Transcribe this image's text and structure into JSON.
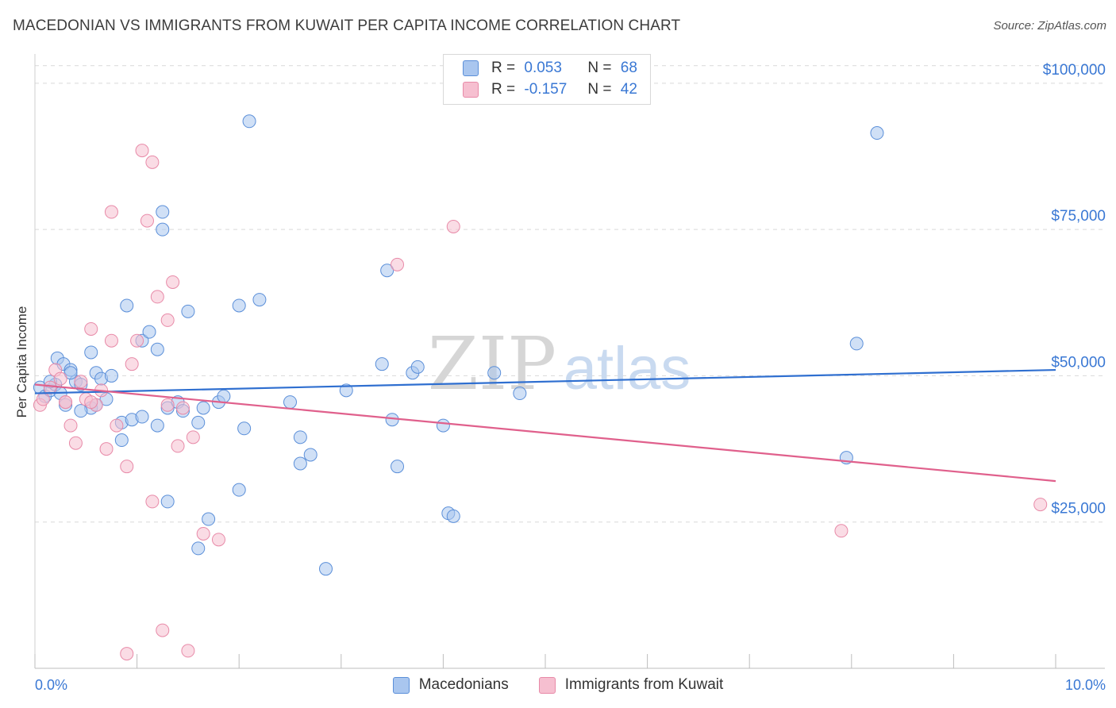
{
  "header": {
    "title": "MACEDONIAN VS IMMIGRANTS FROM KUWAIT PER CAPITA INCOME CORRELATION CHART",
    "source": "Source: ZipAtlas.com"
  },
  "legend": {
    "rows": [
      {
        "r_label": "R =",
        "r_value": "0.053",
        "n_label": "N =",
        "n_value": "68"
      },
      {
        "r_label": "R =",
        "r_value": "-0.157",
        "n_label": "N =",
        "n_value": "42"
      }
    ]
  },
  "bottom_legend": {
    "series_1": "Macedonians",
    "series_2": "Immigrants from Kuwait"
  },
  "colors": {
    "blue_fill": "#a9c6ef",
    "blue_stroke": "#5b8fd9",
    "blue_line": "#2f6fd0",
    "pink_fill": "#f6bfd0",
    "pink_stroke": "#e88aa8",
    "pink_line": "#e0608c",
    "tick_text": "#3a78d4",
    "grid": "#d9d9d9"
  },
  "chart_data": {
    "type": "scatter",
    "title": "MACEDONIAN VS IMMIGRANTS FROM KUWAIT PER CAPITA INCOME CORRELATION CHART",
    "xlabel": "",
    "ylabel": "Per Capita Income",
    "xlim": [
      0,
      10
    ],
    "ylim": [
      0,
      105000
    ],
    "x_tick_labels": [
      "0.0%",
      "10.0%"
    ],
    "y_ticks": [
      25000,
      50000,
      75000,
      100000
    ],
    "y_tick_labels": [
      "$25,000",
      "$50,000",
      "$75,000",
      "$100,000"
    ],
    "grid": true,
    "watermark": "ZIPatlas",
    "series": [
      {
        "name": "Macedonians",
        "R": 0.053,
        "N": 68,
        "trend": {
          "x": [
            0,
            10
          ],
          "y": [
            47000,
            51000
          ]
        },
        "points": [
          [
            0.05,
            48000
          ],
          [
            0.1,
            46500
          ],
          [
            0.15,
            47500
          ],
          [
            0.2,
            48500
          ],
          [
            0.25,
            47000
          ],
          [
            0.3,
            45000
          ],
          [
            0.22,
            53000
          ],
          [
            0.28,
            52000
          ],
          [
            0.35,
            51000
          ],
          [
            0.4,
            49000
          ],
          [
            0.45,
            48500
          ],
          [
            0.55,
            54000
          ],
          [
            0.6,
            50500
          ],
          [
            0.65,
            49500
          ],
          [
            0.7,
            46000
          ],
          [
            0.75,
            50000
          ],
          [
            0.85,
            42000
          ],
          [
            0.95,
            42500
          ],
          [
            0.55,
            44500
          ],
          [
            0.6,
            45000
          ],
          [
            0.85,
            39000
          ],
          [
            1.05,
            43000
          ],
          [
            1.2,
            41500
          ],
          [
            1.3,
            44500
          ],
          [
            1.4,
            45500
          ],
          [
            1.45,
            44000
          ],
          [
            1.6,
            42000
          ],
          [
            1.8,
            45500
          ],
          [
            1.85,
            46500
          ],
          [
            1.65,
            44500
          ],
          [
            0.9,
            62000
          ],
          [
            1.05,
            56000
          ],
          [
            1.12,
            57500
          ],
          [
            1.2,
            54500
          ],
          [
            1.5,
            61000
          ],
          [
            1.25,
            78000
          ],
          [
            1.25,
            75000
          ],
          [
            2.1,
            93500
          ],
          [
            2.0,
            62000
          ],
          [
            2.2,
            63000
          ],
          [
            2.05,
            41000
          ],
          [
            1.7,
            25500
          ],
          [
            1.6,
            20500
          ],
          [
            2.0,
            30500
          ],
          [
            1.3,
            28500
          ],
          [
            2.5,
            45500
          ],
          [
            2.6,
            39500
          ],
          [
            2.6,
            35000
          ],
          [
            2.7,
            36500
          ],
          [
            2.85,
            17000
          ],
          [
            3.05,
            47500
          ],
          [
            3.4,
            52000
          ],
          [
            3.5,
            42500
          ],
          [
            3.45,
            68000
          ],
          [
            3.55,
            34500
          ],
          [
            3.7,
            50500
          ],
          [
            3.75,
            51500
          ],
          [
            4.0,
            41500
          ],
          [
            4.05,
            26500
          ],
          [
            4.1,
            26000
          ],
          [
            4.5,
            50500
          ],
          [
            4.75,
            47000
          ],
          [
            7.95,
            36000
          ],
          [
            8.05,
            55500
          ],
          [
            8.25,
            91500
          ],
          [
            0.15,
            49000
          ],
          [
            0.35,
            50500
          ],
          [
            0.45,
            44000
          ]
        ]
      },
      {
        "name": "Immigrants from Kuwait",
        "R": -0.157,
        "N": 42,
        "trend": {
          "x": [
            0,
            10
          ],
          "y": [
            48500,
            32000
          ]
        },
        "points": [
          [
            0.05,
            45000
          ],
          [
            0.08,
            46000
          ],
          [
            0.15,
            48000
          ],
          [
            0.2,
            51000
          ],
          [
            0.25,
            49500
          ],
          [
            0.3,
            45500
          ],
          [
            0.35,
            41500
          ],
          [
            0.4,
            38500
          ],
          [
            0.45,
            49000
          ],
          [
            0.5,
            46000
          ],
          [
            0.55,
            58000
          ],
          [
            0.6,
            45000
          ],
          [
            0.65,
            47500
          ],
          [
            0.7,
            37500
          ],
          [
            0.75,
            56000
          ],
          [
            0.8,
            41500
          ],
          [
            0.9,
            34500
          ],
          [
            0.95,
            52000
          ],
          [
            1.0,
            56000
          ],
          [
            1.05,
            88500
          ],
          [
            1.1,
            76500
          ],
          [
            1.15,
            86500
          ],
          [
            1.2,
            63500
          ],
          [
            1.3,
            59500
          ],
          [
            1.35,
            66000
          ],
          [
            1.4,
            38000
          ],
          [
            1.45,
            44500
          ],
          [
            1.55,
            39500
          ],
          [
            1.65,
            23000
          ],
          [
            1.8,
            22000
          ],
          [
            1.15,
            28500
          ],
          [
            1.25,
            6500
          ],
          [
            1.5,
            3000
          ],
          [
            0.9,
            2500
          ],
          [
            0.75,
            78000
          ],
          [
            3.55,
            69000
          ],
          [
            4.1,
            75500
          ],
          [
            7.9,
            23500
          ],
          [
            9.85,
            28000
          ],
          [
            0.3,
            45500
          ],
          [
            0.55,
            45500
          ],
          [
            1.3,
            45000
          ]
        ]
      }
    ]
  }
}
